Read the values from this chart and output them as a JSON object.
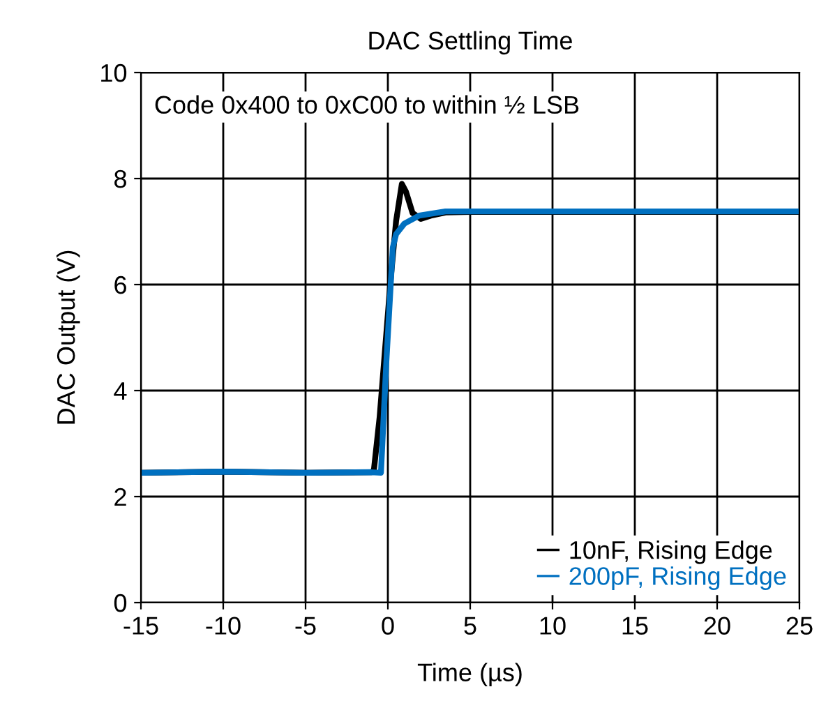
{
  "chart_data": {
    "type": "line",
    "title": "DAC Settling Time",
    "xlabel": "Time (µs)",
    "ylabel": "DAC Output (V)",
    "annotations": [
      "Code 0x400 to 0xC00 to within ½ LSB"
    ],
    "xlim": [
      -15,
      25
    ],
    "ylim": [
      0,
      10
    ],
    "xticks": [
      -15,
      -10,
      -5,
      0,
      5,
      10,
      15,
      20,
      25
    ],
    "yticks": [
      0,
      2,
      4,
      6,
      8,
      10
    ],
    "grid": true,
    "legend": "bottom right",
    "marker": "none",
    "line_style": "solid",
    "series": [
      {
        "name": "10nF, Rising Edge",
        "color": "#000000",
        "x": [
          -15,
          -10,
          -5,
          -1,
          -0.85,
          -0.5,
          0.17,
          0.5,
          0.85,
          1.1,
          1.5,
          2.0,
          2.6,
          3.5,
          5,
          10,
          15,
          20,
          25
        ],
        "values": [
          2.45,
          2.47,
          2.45,
          2.46,
          2.5,
          3.5,
          6.1,
          7.2,
          7.9,
          7.75,
          7.35,
          7.24,
          7.3,
          7.36,
          7.37,
          7.37,
          7.37,
          7.37,
          7.37
        ]
      },
      {
        "name": "200pF, Rising Edge",
        "color": "#0070c0",
        "x": [
          -15,
          -10,
          -5,
          -1,
          -0.42,
          -0.1,
          0.3,
          0.5,
          1.0,
          1.9,
          3.5,
          5,
          10,
          15,
          20,
          25
        ],
        "values": [
          2.45,
          2.47,
          2.45,
          2.46,
          2.45,
          4.5,
          6.7,
          6.95,
          7.15,
          7.3,
          7.38,
          7.38,
          7.38,
          7.38,
          7.38,
          7.38
        ]
      }
    ]
  }
}
